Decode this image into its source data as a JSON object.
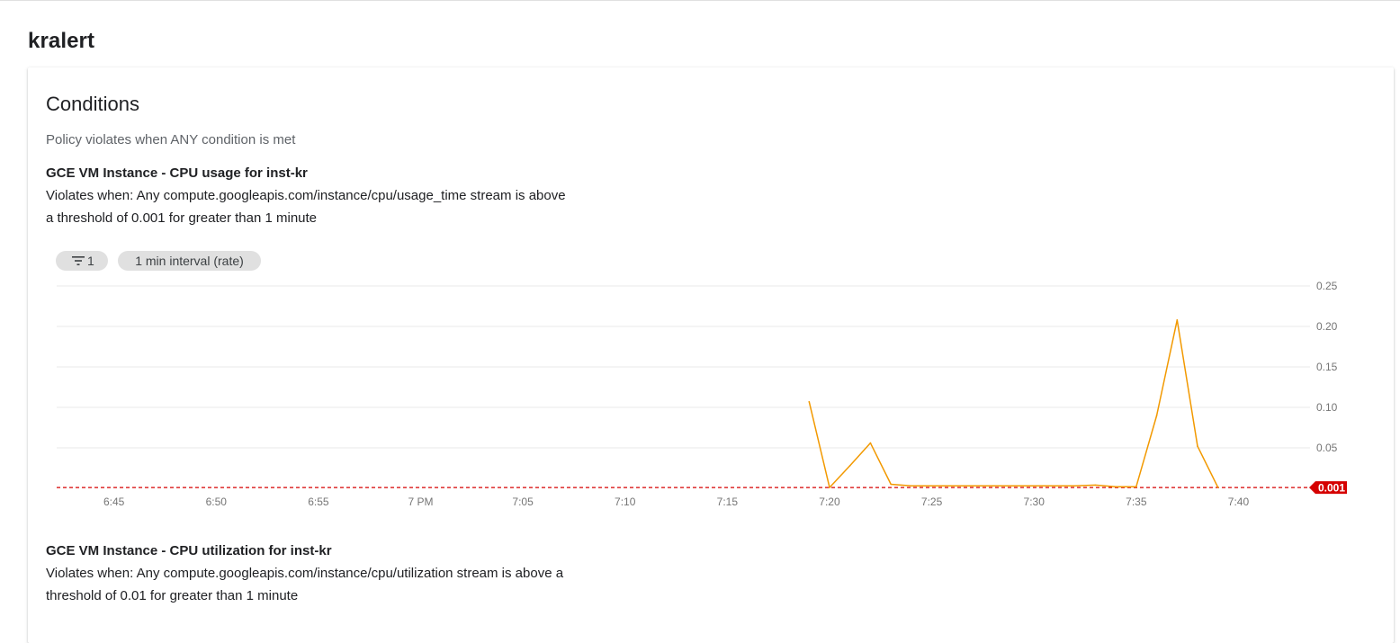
{
  "page": {
    "title": "kralert"
  },
  "conditions": {
    "title": "Conditions",
    "subtitle": "Policy violates when ANY condition is met",
    "items": [
      {
        "name": "GCE VM Instance - CPU usage for inst-kr",
        "description_line1": "Violates when: Any compute.googleapis.com/instance/cpu/usage_time stream is above",
        "description_line2": "a threshold of 0.001 for greater than 1 minute"
      },
      {
        "name": "GCE VM Instance - CPU utilization for inst-kr",
        "description_line1": "Violates when: Any compute.googleapis.com/instance/cpu/utilization stream is above a",
        "description_line2": "threshold of 0.01 for greater than 1 minute"
      }
    ]
  },
  "chart_controls": {
    "filter_icon": "filter-list-icon",
    "filter_count": "1",
    "interval_label": "1 min interval (rate)"
  },
  "chart_data": {
    "type": "line",
    "x_tick_labels": [
      "6:45",
      "6:50",
      "6:55",
      "7 PM",
      "7:05",
      "7:10",
      "7:15",
      "7:20",
      "7:25",
      "7:30",
      "7:35",
      "7:40"
    ],
    "x_tick_minutes": [
      405,
      410,
      415,
      420,
      425,
      430,
      435,
      440,
      445,
      450,
      455,
      460
    ],
    "xlim_minutes": [
      402.2,
      463.5
    ],
    "y_ticks": [
      0.05,
      0.1,
      0.15,
      0.2,
      0.25
    ],
    "y_tick_labels": [
      "0.05",
      "0.10",
      "0.15",
      "0.20",
      "0.25"
    ],
    "ylim": [
      0,
      0.25
    ],
    "grid": true,
    "series": [
      {
        "color": "#f29900",
        "x_minutes": [
          439,
          440,
          441,
          442,
          443,
          444,
          445,
          446,
          447,
          448,
          449,
          450,
          451,
          452,
          453,
          454,
          455,
          456,
          457,
          458,
          459
        ],
        "values": [
          0.107,
          0.001,
          0.028,
          0.056,
          0.005,
          0.003,
          0.003,
          0.003,
          0.003,
          0.003,
          0.003,
          0.003,
          0.003,
          0.003,
          0.004,
          0.002,
          0.002,
          0.09,
          0.208,
          0.052,
          0.001
        ]
      }
    ],
    "threshold": {
      "value": 0.001,
      "label": "0.001",
      "color": "#d50000"
    }
  }
}
